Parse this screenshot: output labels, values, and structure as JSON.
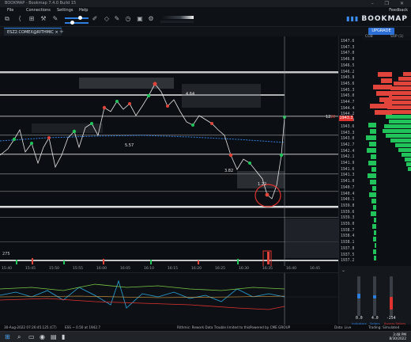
{
  "titlebar": {
    "app": "BOOKMAP - Bookmap 7.4.0 Build 15",
    "windows": "– ❐ ✕"
  },
  "menu": {
    "file": "File",
    "connections": "Connections",
    "settings": "Settings",
    "help": "Help",
    "feedback": "Feedback"
  },
  "brand": {
    "name": "BOOKMAP"
  },
  "tab": {
    "instrument": "ESZ2.COMEX@RITHMIC",
    "add": "+"
  },
  "side": {
    "upgrade": "UPGRADE",
    "col_cob": "COB",
    "col_svp": "SVP (1)",
    "row_size": "12",
    "row_size_red": "20"
  },
  "price_axis": {
    "labels": [
      "1947.6",
      "1947.3",
      "1947.0",
      "1946.8",
      "1946.5",
      "1946.2",
      "1945.9",
      "1945.6",
      "1945.3",
      "1945.0",
      "1944.7",
      "1944.4",
      "1944.2",
      "1943.9",
      "1943.6",
      "1943.3",
      "1943.0",
      "1942.7",
      "1942.4",
      "1942.1",
      "1941.9",
      "1941.6",
      "1941.3",
      "1941.0",
      "1940.7",
      "1940.4",
      "1940.1",
      "1939.8",
      "1939.6",
      "1939.3",
      "1939.0",
      "1938.7",
      "1938.4",
      "1938.1",
      "1937.8",
      "1937.5",
      "1937.2"
    ],
    "last": "1943.3",
    "last_color": "#e0332f"
  },
  "chart_labels": {
    "l1": "4.64",
    "l2": "5.57",
    "l3": "3.82",
    "l4": "1.22",
    "vol": "275"
  },
  "time_axis": [
    "15:40",
    "15:45",
    "15:50",
    "15:55",
    "16:00",
    "16:05",
    "16:10",
    "16:15",
    "16:20",
    "16:25",
    "16:30",
    "16:35",
    "16:40",
    "16:45"
  ],
  "gauges": {
    "left": {
      "value": "0.0",
      "label": "Indicators"
    },
    "mid": {
      "value": "4.0",
      "label": "Sellers"
    },
    "right": {
      "value": "-254",
      "label": "Buyers Sellers"
    }
  },
  "status": {
    "datetime": "30-Aug-2022 07:26:45.125 (CT)",
    "ohlc": "ESS ~ 0.50 at 1942.7",
    "connection": "Rithmic: Rework Data Trouble limited to this",
    "powered": "Powered by CME GROUP",
    "data_live": "Data: Live",
    "trading": "Trading: Simulated"
  },
  "clock": {
    "time": "3:48 PM",
    "date": "8/30/2022"
  },
  "colors": {
    "bid": "#21c45a",
    "ask": "#e0443a",
    "accent": "#2f7fe0",
    "price_line": "#e6e6e6"
  }
}
